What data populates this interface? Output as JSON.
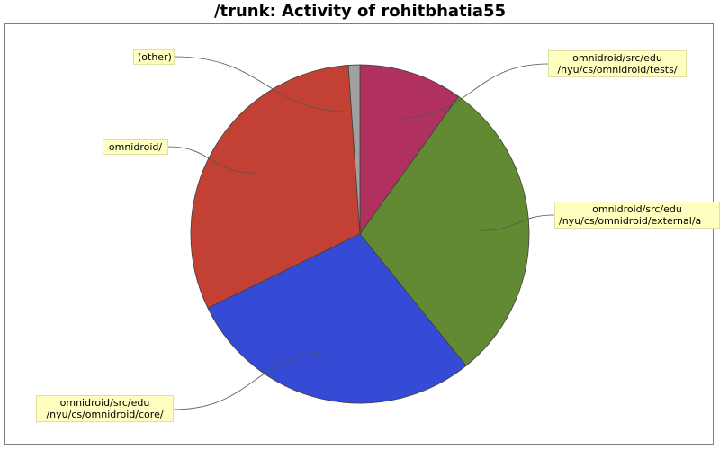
{
  "chart_data": {
    "type": "pie",
    "title": "/trunk: Activity of rohitbhatia55",
    "slices": [
      {
        "label_lines": [
          "omnidroid/src/edu",
          "/nyu/cs/omnidroid/tests/"
        ],
        "value": 9.9,
        "color": "#b03060"
      },
      {
        "label_lines": [
          "omnidroid/src/edu",
          "/nyu/cs/omnidroid/external/a"
        ],
        "value": 29.3,
        "color": "#628a32"
      },
      {
        "label_lines": [
          "omnidroid/src/edu",
          "/nyu/cs/omnidroid/core/"
        ],
        "value": 28.6,
        "color": "#354bd6"
      },
      {
        "label_lines": [
          "omnidroid/"
        ],
        "value": 31.1,
        "color": "#c34034"
      },
      {
        "label_lines": [
          "(other)"
        ],
        "value": 1.1,
        "color": "#a0a0a0"
      }
    ]
  }
}
